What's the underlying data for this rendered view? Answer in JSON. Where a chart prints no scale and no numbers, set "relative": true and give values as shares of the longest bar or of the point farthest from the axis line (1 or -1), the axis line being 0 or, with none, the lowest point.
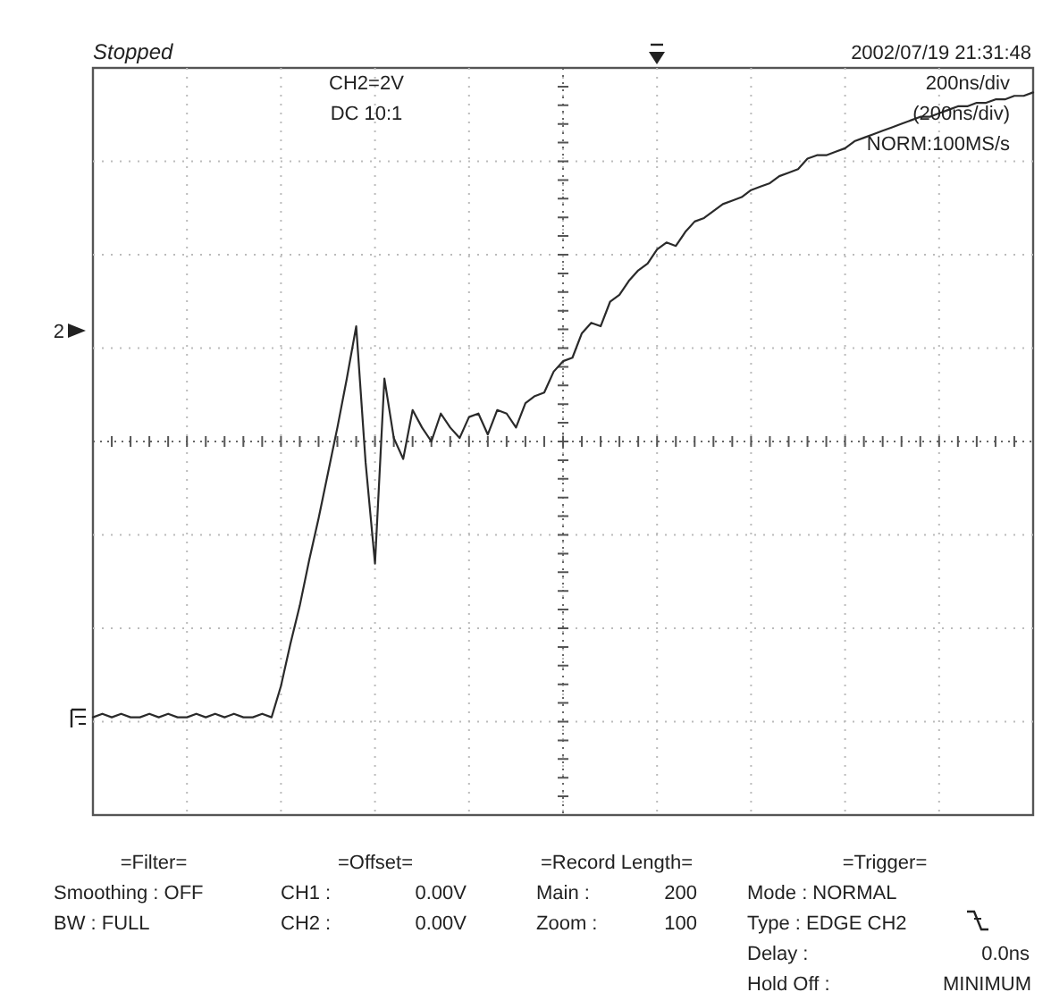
{
  "chart_data": {
    "type": "line",
    "title": "Stopped",
    "relative": true,
    "grid": true,
    "ref_lines": [
      {
        "axis": "y",
        "value": 0,
        "color": "#666666",
        "line_style": "dotted"
      }
    ],
    "categories": [
      null,
      null,
      null,
      null,
      null,
      null,
      null,
      null,
      null,
      null,
      null,
      null,
      null,
      null,
      null,
      null,
      null,
      null,
      null,
      null,
      null,
      null,
      null,
      null,
      null,
      null,
      null,
      null,
      null,
      null,
      null,
      null,
      null,
      null,
      null,
      null,
      null,
      null,
      null,
      null,
      null,
      null,
      null,
      null,
      null,
      null,
      null,
      null,
      null,
      null,
      null,
      null,
      null,
      null,
      null,
      null,
      null,
      null,
      null,
      null,
      null,
      null,
      null,
      null,
      null,
      null,
      null,
      null,
      null,
      null,
      null,
      null,
      null,
      null,
      null,
      null,
      null,
      null,
      null,
      null,
      null,
      null,
      null,
      null,
      null,
      null,
      null,
      null,
      null,
      null,
      null,
      null,
      null,
      null,
      null,
      null,
      null,
      null,
      null,
      null,
      null
    ],
    "series": [
      {
        "color": "#2a2a2a",
        "values": [
          -0.79,
          -0.78,
          -0.79,
          -0.78,
          -0.79,
          -0.79,
          -0.78,
          -0.79,
          -0.78,
          -0.79,
          -0.79,
          -0.78,
          -0.79,
          -0.78,
          -0.79,
          -0.78,
          -0.79,
          -0.79,
          -0.78,
          -0.79,
          -0.7,
          -0.58,
          -0.47,
          -0.34,
          -0.22,
          -0.09,
          0.04,
          0.18,
          0.33,
          -0.06,
          -0.35,
          0.18,
          0.01,
          -0.05,
          0.09,
          0.04,
          0.0,
          0.08,
          0.04,
          0.01,
          0.07,
          0.08,
          0.02,
          0.09,
          0.08,
          0.04,
          0.11,
          0.13,
          0.14,
          0.2,
          0.23,
          0.24,
          0.31,
          0.34,
          0.33,
          0.4,
          0.42,
          0.46,
          0.49,
          0.51,
          0.55,
          0.57,
          0.56,
          0.6,
          0.63,
          0.64,
          0.66,
          0.68,
          0.69,
          0.7,
          0.72,
          0.73,
          0.74,
          0.76,
          0.77,
          0.78,
          0.81,
          0.82,
          0.82,
          0.83,
          0.84,
          0.86,
          0.87,
          0.88,
          0.89,
          0.9,
          0.91,
          0.92,
          0.93,
          0.93,
          0.94,
          0.95,
          0.96,
          0.96,
          0.97,
          0.97,
          0.98,
          0.98,
          0.99,
          0.99,
          1.0
        ]
      }
    ],
    "annotations": [
      "2002/07/19 21:31:48",
      "CH2=2V",
      "DC 10:1",
      "200ns/div",
      "(200ns/div)",
      "NORM:100MS/s",
      "2",
      "=Filter=",
      "Smoothing : OFF",
      "BW : FULL",
      "=Offset=",
      "CH1 :",
      "0.00V",
      "CH2 :",
      "0.00V",
      "=Record Length=",
      "Main :",
      "200",
      "Zoom :",
      "100",
      "=Trigger=",
      "Mode : NORMAL",
      "Type : EDGE CH2",
      "Delay :",
      "0.0ns",
      "Hold Off :",
      "MINIMUM"
    ]
  }
}
